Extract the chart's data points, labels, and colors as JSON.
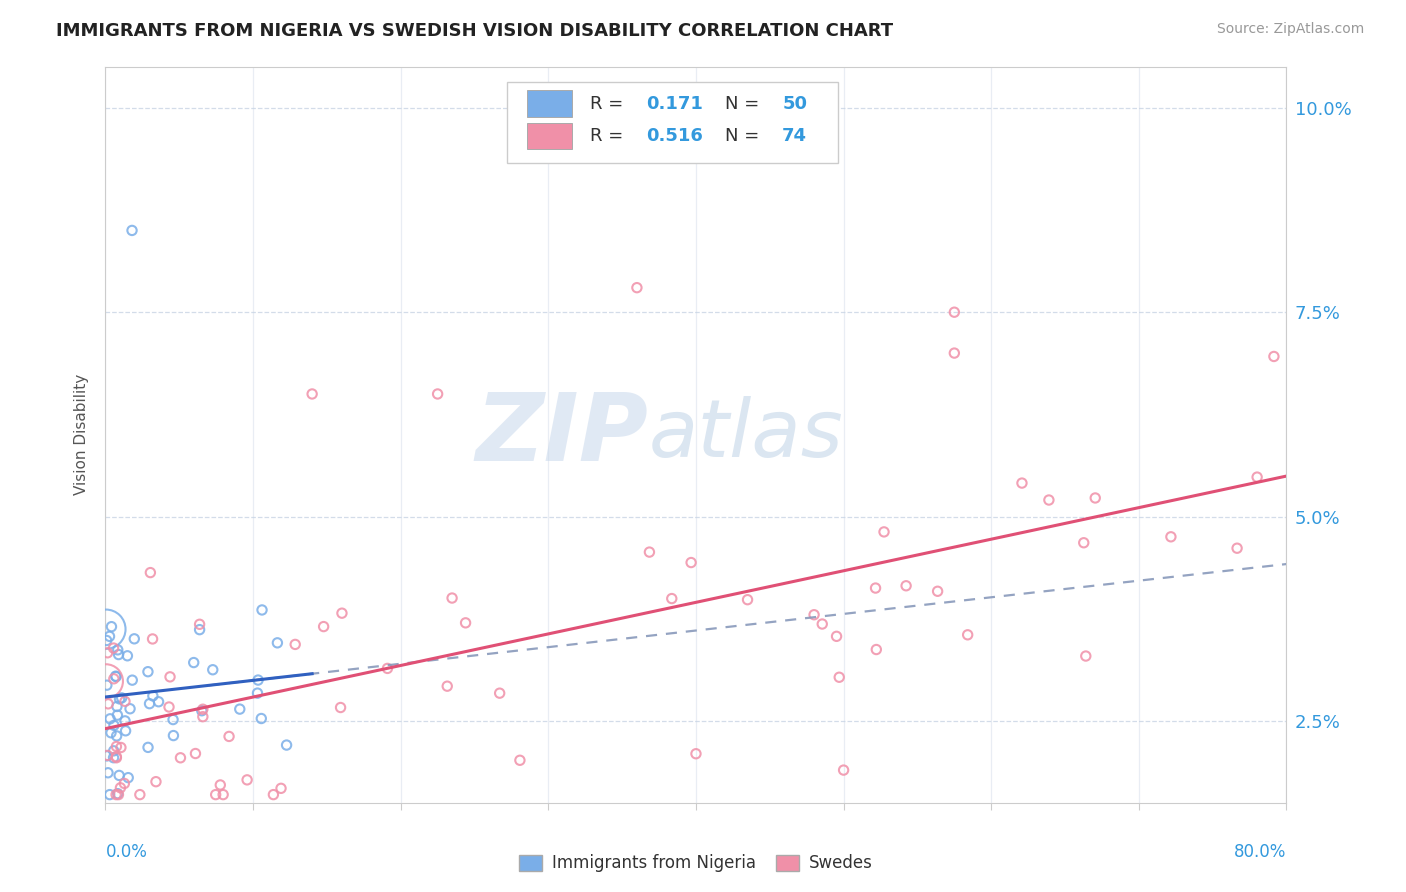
{
  "title": "IMMIGRANTS FROM NIGERIA VS SWEDISH VISION DISABILITY CORRELATION CHART",
  "source": "Source: ZipAtlas.com",
  "ylabel": "Vision Disability",
  "legend_labels": [
    "Immigrants from Nigeria",
    "Swedes"
  ],
  "legend_r": [
    0.171,
    0.516
  ],
  "legend_n": [
    50,
    74
  ],
  "blue_color": "#7aaee8",
  "pink_color": "#f090a8",
  "blue_line_color": "#3060c0",
  "pink_line_color": "#e05075",
  "dashed_line_color": "#8899bb",
  "watermark_color": "#c8d8ec",
  "xlim": [
    0.0,
    0.8
  ],
  "ylim_low": 0.015,
  "ylim_high": 0.105,
  "ytick_vals": [
    0.025,
    0.05,
    0.075,
    0.1
  ],
  "ytick_labels": [
    "2.5%",
    "5.0%",
    "7.5%",
    "10.0%"
  ],
  "title_fontsize": 13,
  "source_fontsize": 10,
  "ytick_fontsize": 13,
  "ylabel_fontsize": 11,
  "watermark": "ZIPatlas"
}
